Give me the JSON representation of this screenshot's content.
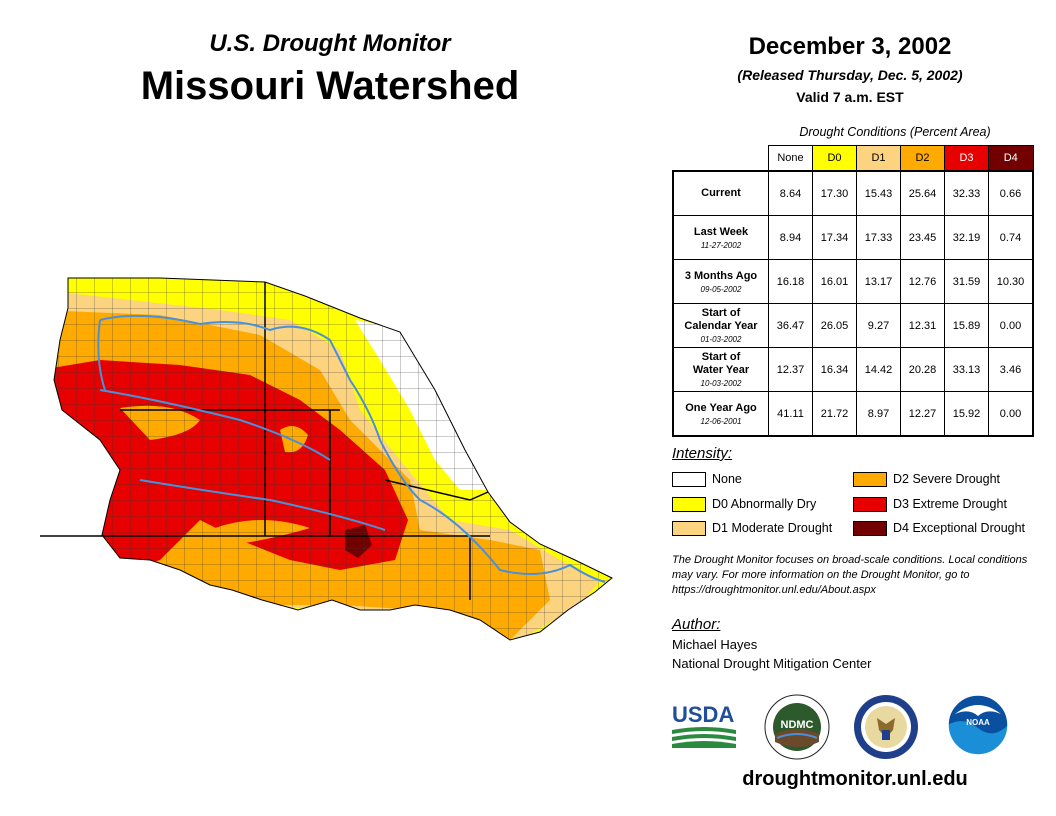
{
  "header": {
    "subtitle": "U.S. Drought Monitor",
    "title": "Missouri Watershed"
  },
  "release": {
    "date": "December 3, 2002",
    "released": "(Released Thursday, Dec. 5, 2002)",
    "valid": "Valid 7 a.m. EST"
  },
  "table": {
    "caption": "Drought Conditions (Percent Area)",
    "columns": [
      "None",
      "D0",
      "D1",
      "D2",
      "D3",
      "D4"
    ],
    "column_colors": [
      "#ffffff",
      "#ffff00",
      "#fcd37f",
      "#ffaa00",
      "#e60000",
      "#730000"
    ],
    "column_text_colors": [
      "#000000",
      "#000000",
      "#000000",
      "#000000",
      "#ffffff",
      "#ffffff"
    ],
    "rows": [
      {
        "label": "Current",
        "date": "",
        "values": [
          "8.64",
          "17.30",
          "15.43",
          "25.64",
          "32.33",
          "0.66"
        ]
      },
      {
        "label": "Last Week",
        "date": "11-27-2002",
        "values": [
          "8.94",
          "17.34",
          "17.33",
          "23.45",
          "32.19",
          "0.74"
        ]
      },
      {
        "label": "3 Months Ago",
        "date": "09-05-2002",
        "values": [
          "16.18",
          "16.01",
          "13.17",
          "12.76",
          "31.59",
          "10.30"
        ]
      },
      {
        "label": "Start of Calendar Year",
        "date": "01-03-2002",
        "values": [
          "36.47",
          "26.05",
          "9.27",
          "12.31",
          "15.89",
          "0.00"
        ]
      },
      {
        "label": "Start of Water Year",
        "date": "10-03-2002",
        "values": [
          "12.37",
          "16.34",
          "14.42",
          "20.28",
          "33.13",
          "3.46"
        ]
      },
      {
        "label": "One Year Ago",
        "date": "12-06-2001",
        "values": [
          "41.11",
          "21.72",
          "8.97",
          "12.27",
          "15.92",
          "0.00"
        ]
      }
    ]
  },
  "legend": {
    "title": "Intensity:",
    "items": [
      {
        "label": "None",
        "color": "#ffffff"
      },
      {
        "label": "D0 Abnormally Dry",
        "color": "#ffff00"
      },
      {
        "label": "D1 Moderate Drought",
        "color": "#fcd37f"
      },
      {
        "label": "D2 Severe Drought",
        "color": "#ffaa00"
      },
      {
        "label": "D3 Extreme Drought",
        "color": "#e60000"
      },
      {
        "label": "D4 Exceptional Drought",
        "color": "#730000"
      }
    ]
  },
  "note": "The Drought Monitor focuses on broad-scale conditions. Local conditions may vary. For more information on the Drought Monitor, go to https://droughtmonitor.unl.edu/About.aspx",
  "author": {
    "title": "Author:",
    "name": "Michael Hayes",
    "org": "National Drought Mitigation Center"
  },
  "logos": {
    "usda": "USDA",
    "ndmc": "NDMC",
    "noaa": "NOAA"
  },
  "website": "droughtmonitor.unl.edu",
  "map": {
    "river_color": "#4a90d9",
    "state_border_color": "#000000",
    "county_line_color": "#333333"
  }
}
